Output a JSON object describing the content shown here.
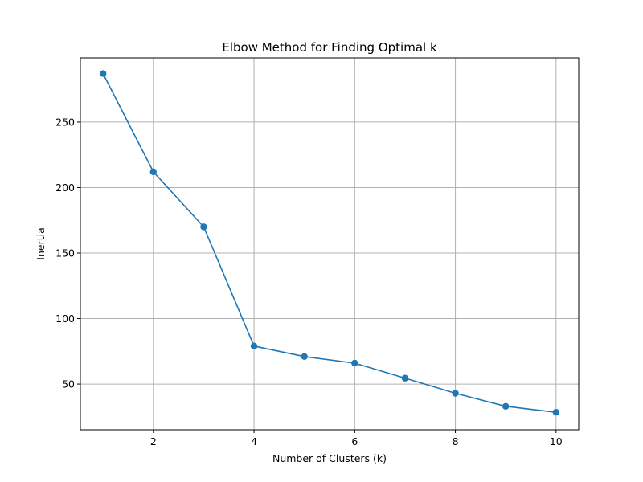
{
  "chart_data": {
    "type": "line",
    "title": "Elbow Method for Finding Optimal k",
    "xlabel": "Number of Clusters (k)",
    "ylabel": "Inertia",
    "x": [
      1,
      2,
      3,
      4,
      5,
      6,
      7,
      8,
      9,
      10
    ],
    "series": [
      {
        "values": [
          287,
          212,
          170,
          79,
          71,
          66,
          54.5,
          43,
          33,
          28.5
        ]
      }
    ],
    "xlim": [
      0.55,
      10.45
    ],
    "ylim": [
      15.1,
      299
    ],
    "xticks": [
      2,
      4,
      6,
      8,
      10
    ],
    "yticks": [
      50,
      100,
      150,
      200,
      250
    ],
    "grid": true,
    "marker": "circle",
    "colors": {
      "series": "#1f77b4",
      "grid": "#b0b0b0",
      "axes": "#000000"
    }
  }
}
